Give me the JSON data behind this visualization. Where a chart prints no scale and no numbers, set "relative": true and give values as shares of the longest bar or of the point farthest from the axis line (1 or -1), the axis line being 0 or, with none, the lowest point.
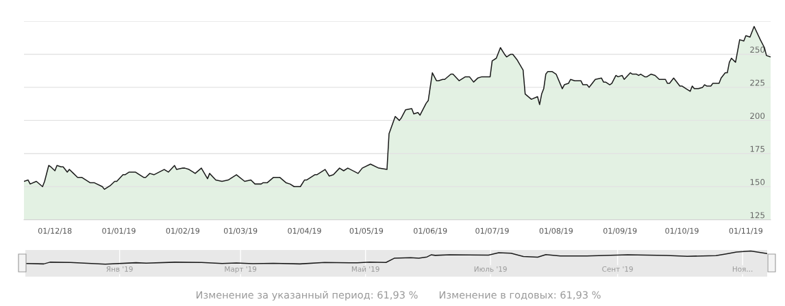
{
  "chart_data": [
    {
      "type": "area",
      "grid": "y",
      "xlim": [
        "2018-11-16",
        "2019-11-13"
      ],
      "ylim": [
        125,
        275
      ],
      "xticks": [
        {
          "value": "2018-12-01",
          "label": "01/12/18"
        },
        {
          "value": "2019-01-01",
          "label": "01/01/19"
        },
        {
          "value": "2019-02-01",
          "label": "01/02/19"
        },
        {
          "value": "2019-03-01",
          "label": "01/03/19"
        },
        {
          "value": "2019-04-01",
          "label": "01/04/19"
        },
        {
          "value": "2019-05-01",
          "label": "01/05/19"
        },
        {
          "value": "2019-06-01",
          "label": "01/06/19"
        },
        {
          "value": "2019-07-01",
          "label": "01/07/19"
        },
        {
          "value": "2019-08-01",
          "label": "01/08/19"
        },
        {
          "value": "2019-09-01",
          "label": "01/09/19"
        },
        {
          "value": "2019-10-01",
          "label": "01/10/19"
        },
        {
          "value": "2019-11-01",
          "label": "01/11/19"
        }
      ],
      "yticks": [
        125,
        150,
        175,
        200,
        225,
        250,
        {
          "value": 275,
          "label": null
        }
      ],
      "x": [
        "2018-11-16",
        "2018-11-18",
        "2018-11-19",
        "2018-11-22",
        "2018-11-25",
        "2018-11-26",
        "2018-11-28",
        "2018-11-29",
        "2018-12-01",
        "2018-12-02",
        "2018-12-04",
        "2018-12-05",
        "2018-12-07",
        "2018-12-08",
        "2018-12-10",
        "2018-12-12",
        "2018-12-14",
        "2018-12-18",
        "2018-12-20",
        "2018-12-24",
        "2018-12-25",
        "2018-12-28",
        "2018-12-30",
        "2018-12-31",
        "2019-01-03",
        "2019-01-04",
        "2019-01-06",
        "2019-01-09",
        "2019-01-13",
        "2019-01-14",
        "2019-01-16",
        "2019-01-18",
        "2019-01-23",
        "2019-01-25",
        "2019-01-28",
        "2019-01-29",
        "2019-02-01",
        "2019-02-02",
        "2019-02-04",
        "2019-02-06",
        "2019-02-07",
        "2019-02-10",
        "2019-02-13",
        "2019-02-14",
        "2019-02-17",
        "2019-02-20",
        "2019-02-23",
        "2019-02-27",
        "2019-03-03",
        "2019-03-06",
        "2019-03-08",
        "2019-03-11",
        "2019-03-12",
        "2019-03-14",
        "2019-03-17",
        "2019-03-20",
        "2019-03-23",
        "2019-03-25",
        "2019-03-27",
        "2019-03-30",
        "2019-04-01",
        "2019-04-02",
        "2019-04-06",
        "2019-04-07",
        "2019-04-11",
        "2019-04-13",
        "2019-04-15",
        "2019-04-18",
        "2019-04-20",
        "2019-04-22",
        "2019-04-27",
        "2019-04-29",
        "2019-05-03",
        "2019-05-07",
        "2019-05-11",
        "2019-05-12",
        "2019-05-15",
        "2019-05-17",
        "2019-05-18",
        "2019-05-20",
        "2019-05-23",
        "2019-05-24",
        "2019-05-26",
        "2019-05-27",
        "2019-05-30",
        "2019-05-31",
        "2019-06-02",
        "2019-06-04",
        "2019-06-05",
        "2019-06-07",
        "2019-06-08",
        "2019-06-11",
        "2019-06-12",
        "2019-06-15",
        "2019-06-18",
        "2019-06-20",
        "2019-06-22",
        "2019-06-24",
        "2019-06-26",
        "2019-06-30",
        "2019-07-01",
        "2019-07-03",
        "2019-07-05",
        "2019-07-07",
        "2019-07-08",
        "2019-07-10",
        "2019-07-11",
        "2019-07-13",
        "2019-07-16",
        "2019-07-17",
        "2019-07-20",
        "2019-07-23",
        "2019-07-24",
        "2019-07-25",
        "2019-07-26",
        "2019-07-27",
        "2019-07-28",
        "2019-07-30",
        "2019-08-01",
        "2019-08-04",
        "2019-08-05",
        "2019-08-07",
        "2019-08-08",
        "2019-08-10",
        "2019-08-13",
        "2019-08-14",
        "2019-08-16",
        "2019-08-17",
        "2019-08-18",
        "2019-08-20",
        "2019-08-23",
        "2019-08-24",
        "2019-08-25",
        "2019-08-27",
        "2019-08-28",
        "2019-08-30",
        "2019-08-31",
        "2019-09-02",
        "2019-09-03",
        "2019-09-06",
        "2019-09-07",
        "2019-09-09",
        "2019-09-10",
        "2019-09-11",
        "2019-09-13",
        "2019-09-14",
        "2019-09-16",
        "2019-09-18",
        "2019-09-20",
        "2019-09-23",
        "2019-09-24",
        "2019-09-25",
        "2019-09-27",
        "2019-09-30",
        "2019-10-01",
        "2019-10-03",
        "2019-10-05",
        "2019-10-06",
        "2019-10-07",
        "2019-10-09",
        "2019-10-11",
        "2019-10-12",
        "2019-10-13",
        "2019-10-15",
        "2019-10-16",
        "2019-10-19",
        "2019-10-20",
        "2019-10-22",
        "2019-10-23",
        "2019-10-24",
        "2019-10-25",
        "2019-10-27",
        "2019-10-29",
        "2019-10-31",
        "2019-11-01",
        "2019-11-03",
        "2019-11-05",
        "2019-11-08",
        "2019-11-10",
        "2019-11-11",
        "2019-11-13"
      ],
      "series": [
        {
          "color": "#1a1a1a",
          "values": [
            154,
            155,
            152,
            154,
            150,
            154,
            166,
            165,
            162,
            166,
            165,
            165,
            161,
            163,
            160,
            157,
            157,
            153,
            153,
            150,
            148,
            151,
            154,
            154,
            159,
            159,
            161,
            161,
            157,
            157,
            160,
            159,
            163,
            161,
            166,
            163,
            164,
            164,
            163,
            161,
            160,
            164,
            156,
            160,
            155,
            154,
            155,
            159,
            154,
            155,
            152,
            152,
            153,
            153,
            157,
            157,
            153,
            152,
            150,
            150,
            155,
            155,
            159,
            159,
            163,
            158,
            159,
            164,
            162,
            164,
            160,
            164,
            167,
            164,
            163,
            190,
            203,
            200,
            202,
            208,
            209,
            205,
            206,
            204,
            213,
            215,
            236,
            230,
            230,
            231,
            231,
            235,
            235,
            230,
            233,
            233,
            229,
            232,
            233,
            233,
            245,
            247,
            255,
            250,
            248,
            250,
            250,
            246,
            238,
            220,
            216,
            218,
            212,
            220,
            224,
            235,
            237,
            237,
            235,
            224,
            227,
            228,
            231,
            230,
            230,
            227,
            227,
            225,
            227,
            231,
            232,
            229,
            229,
            227,
            228,
            234,
            233,
            234,
            231,
            236,
            235,
            235,
            234,
            235,
            233,
            233,
            235,
            234,
            231,
            231,
            228,
            228,
            232,
            226,
            226,
            224,
            222,
            226,
            224,
            224,
            225,
            227,
            226,
            226,
            228,
            228,
            232,
            236,
            236,
            244,
            247,
            244,
            261,
            260,
            264,
            263,
            271,
            261,
            255,
            249,
            248
          ]
        }
      ]
    },
    {
      "type": "line",
      "relative": true,
      "grid": "x",
      "tick_labels": "x",
      "xlim": [
        "2018-11-16",
        "2019-11-13"
      ],
      "xticks": [
        {
          "value": "2019-01-01",
          "label": "Янв '19"
        },
        {
          "value": "2019-03-01",
          "label": "Март '19"
        },
        {
          "value": "2019-05-01",
          "label": "Май '19"
        },
        {
          "value": "2019-07-01",
          "label": "Июль '19"
        },
        {
          "value": "2019-09-01",
          "label": "Сент '19"
        },
        {
          "value": "2019-11-01",
          "label": "Ноя..."
        }
      ],
      "x": [
        "2018-11-16",
        "2018-11-25",
        "2018-11-28",
        "2018-12-08",
        "2018-12-25",
        "2019-01-09",
        "2019-01-14",
        "2019-01-28",
        "2019-02-10",
        "2019-02-20",
        "2019-02-27",
        "2019-03-07",
        "2019-03-17",
        "2019-03-30",
        "2019-04-11",
        "2019-04-27",
        "2019-05-03",
        "2019-05-11",
        "2019-05-15",
        "2019-05-23",
        "2019-05-27",
        "2019-05-31",
        "2019-06-02",
        "2019-06-04",
        "2019-06-11",
        "2019-06-30",
        "2019-07-05",
        "2019-07-11",
        "2019-07-17",
        "2019-07-24",
        "2019-07-28",
        "2019-08-04",
        "2019-08-17",
        "2019-09-06",
        "2019-09-25",
        "2019-10-05",
        "2019-10-19",
        "2019-10-24",
        "2019-10-29",
        "2019-11-05",
        "2019-11-13"
      ],
      "values": [
        0.05,
        0.02,
        0.15,
        0.13,
        0,
        0.11,
        0.08,
        0.15,
        0.13,
        0.05,
        0.09,
        0.04,
        0.07,
        0.02,
        0.13,
        0.1,
        0.16,
        0.13,
        0.45,
        0.5,
        0.45,
        0.55,
        0.71,
        0.67,
        0.71,
        0.69,
        0.87,
        0.83,
        0.59,
        0.53,
        0.73,
        0.62,
        0.63,
        0.72,
        0.66,
        0.6,
        0.65,
        0.78,
        0.92,
        1,
        0.81
      ],
      "annotations": [
        "Изменение за указанный период: 61,93 %",
        "Изменение в годовых: 61,93 %"
      ]
    }
  ]
}
